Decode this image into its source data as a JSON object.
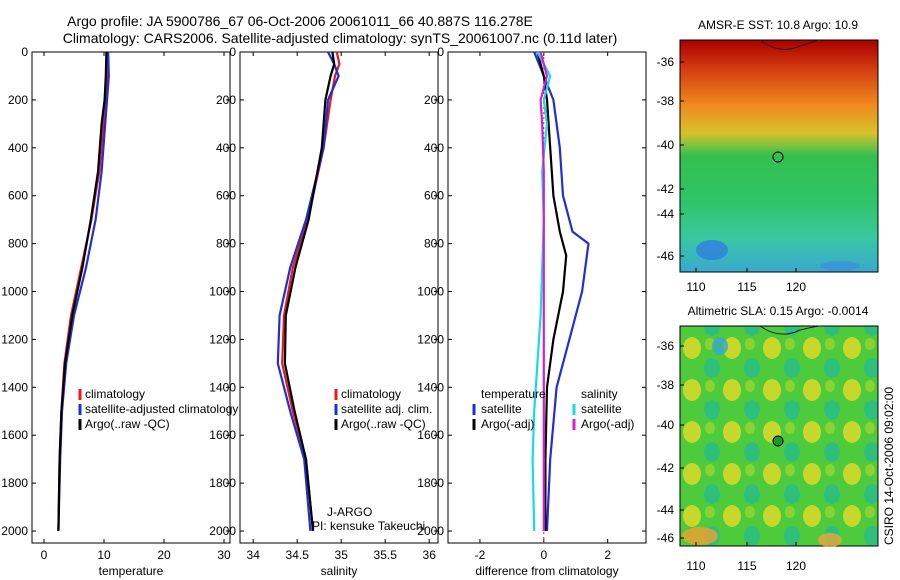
{
  "header": {
    "line1": "Argo profile: JA 5900786_67 06-Oct-2006 20061011_66 40.887S 116.278E",
    "line2": "Climatology: CARS2006. Satellite-adjusted climatology: synTS_20061007.nc (0.11d later)"
  },
  "colors": {
    "climatology": "#e41a1c",
    "satellite": "#1f2ed6",
    "argo": "#000000",
    "cyan": "#19d9e6",
    "magenta": "#d21fd2"
  },
  "chart_data": [
    {
      "type": "line",
      "id": "temperature",
      "xlabel": "temperature",
      "ylabel": "",
      "xlim": [
        -2,
        31
      ],
      "ylim": [
        2050,
        0
      ],
      "xticks": [
        0,
        10,
        20,
        30
      ],
      "yticks": [
        0,
        200,
        400,
        600,
        800,
        1000,
        1200,
        1400,
        1600,
        1800,
        2000
      ],
      "legend": [
        "climatology",
        "satellite-adjusted climatology",
        "Argo(..raw -QC)"
      ],
      "legend_position": "bottom-right",
      "series": [
        {
          "name": "climatology",
          "color_key": "climatology",
          "x": [
            10.6,
            10.5,
            10.3,
            9.9,
            9.2,
            7.9,
            6.2,
            4.5,
            3.4,
            2.9,
            2.6,
            2.4
          ],
          "y": [
            0,
            100,
            200,
            300,
            500,
            700,
            900,
            1100,
            1300,
            1500,
            1700,
            2000
          ]
        },
        {
          "name": "satellite-adjusted climatology",
          "color_key": "satellite",
          "x": [
            10.7,
            10.8,
            10.5,
            10.2,
            9.6,
            8.6,
            7.0,
            5.0,
            3.7,
            3.0,
            2.7,
            2.4
          ],
          "y": [
            0,
            100,
            200,
            300,
            500,
            700,
            900,
            1100,
            1300,
            1500,
            1700,
            2000
          ]
        },
        {
          "name": "Argo(..raw -QC)",
          "color_key": "argo",
          "x": [
            10.4,
            10.3,
            10.1,
            9.6,
            9.0,
            7.8,
            6.4,
            4.7,
            3.5,
            2.9,
            2.6,
            2.4
          ],
          "y": [
            0,
            100,
            200,
            300,
            500,
            700,
            900,
            1100,
            1300,
            1500,
            1700,
            2000
          ]
        }
      ]
    },
    {
      "type": "line",
      "id": "salinity",
      "xlabel": "salinity",
      "ylabel": "",
      "xlim": [
        33.85,
        36.1
      ],
      "ylim": [
        2050,
        0
      ],
      "xticks": [
        34,
        34.5,
        35,
        35.5,
        36
      ],
      "yticks": [
        0,
        200,
        400,
        600,
        800,
        1000,
        1200,
        1400,
        1600,
        1800,
        2000
      ],
      "legend": [
        "climatology",
        "satellite adj. clim.",
        "Argo(..raw -QC)"
      ],
      "legend_position": "bottom-right",
      "annotations": [
        "J-ARGO",
        "PI: kensuke Takeuchi"
      ],
      "series": [
        {
          "name": "climatology",
          "color_key": "climatology",
          "x": [
            34.95,
            34.98,
            34.93,
            34.88,
            34.8,
            34.62,
            34.45,
            34.35,
            34.33,
            34.45,
            34.6,
            34.68
          ],
          "y": [
            0,
            50,
            100,
            200,
            400,
            700,
            900,
            1100,
            1300,
            1500,
            1700,
            2000
          ]
        },
        {
          "name": "satellite adj. clim.",
          "color_key": "satellite",
          "x": [
            34.85,
            34.92,
            34.97,
            34.85,
            34.8,
            34.6,
            34.42,
            34.3,
            34.28,
            34.42,
            34.58,
            34.65
          ],
          "y": [
            0,
            50,
            100,
            200,
            400,
            700,
            900,
            1100,
            1300,
            1500,
            1700,
            2000
          ]
        },
        {
          "name": "Argo(..raw -QC)",
          "color_key": "argo",
          "x": [
            34.9,
            34.92,
            34.88,
            34.82,
            34.78,
            34.63,
            34.48,
            34.37,
            34.36,
            34.47,
            34.6,
            34.68
          ],
          "y": [
            0,
            50,
            100,
            200,
            400,
            700,
            900,
            1100,
            1300,
            1500,
            1700,
            2000
          ]
        }
      ]
    },
    {
      "type": "line",
      "id": "difference",
      "xlabel": "difference from climatology",
      "ylabel": "",
      "xlim": [
        -3,
        3.2
      ],
      "ylim": [
        2050,
        0
      ],
      "xticks": [
        -2,
        0,
        2
      ],
      "yticks": [
        0,
        200,
        400,
        600,
        800,
        1000,
        1200,
        1400,
        1600,
        1800,
        2000
      ],
      "legend": [
        "temperature",
        "satellite",
        "Argo(-adj)",
        "salinity",
        "satellite",
        "Argo(-adj)"
      ],
      "legend_position": "bottom",
      "series": [
        {
          "name": "temperature satellite",
          "color_key": "satellite",
          "x": [
            -0.3,
            0.0,
            0.3,
            0.5,
            0.6,
            0.9,
            1.4,
            1.2,
            0.8,
            0.4,
            0.2,
            0.1
          ],
          "y": [
            0,
            100,
            200,
            400,
            600,
            750,
            800,
            1000,
            1200,
            1400,
            1700,
            2000
          ]
        },
        {
          "name": "temperature Argo(-adj)",
          "color_key": "argo",
          "x": [
            -0.2,
            0.0,
            0.1,
            0.2,
            0.3,
            0.5,
            0.7,
            0.6,
            0.3,
            0.1,
            0.05,
            0.05
          ],
          "y": [
            0,
            100,
            200,
            400,
            600,
            750,
            850,
            1000,
            1200,
            1400,
            1700,
            2000
          ]
        },
        {
          "name": "salinity satellite",
          "color_key": "cyan",
          "x": [
            -0.2,
            0.2,
            0.0,
            0.1,
            -0.05,
            0.0,
            -0.05,
            -0.1,
            -0.2,
            -0.3,
            -0.35,
            -0.3
          ],
          "y": [
            0,
            100,
            200,
            300,
            500,
            700,
            900,
            1100,
            1300,
            1500,
            1700,
            2000
          ]
        },
        {
          "name": "salinity Argo(-adj)",
          "color_key": "magenta",
          "x": [
            -0.1,
            0.1,
            -0.1,
            -0.05,
            0.0,
            0.0,
            0.0,
            0.0,
            0.0,
            0.0,
            0.0,
            0.0
          ],
          "y": [
            0,
            100,
            200,
            300,
            500,
            700,
            900,
            1100,
            1300,
            1500,
            1700,
            2000
          ]
        }
      ]
    }
  ],
  "maps": [
    {
      "title": "AMSR-E SST: 10.8 Argo: 10.9",
      "xticks": [
        "110",
        "115",
        "120"
      ],
      "yticks": [
        "-36",
        "-38",
        "-40",
        "-42",
        "-44",
        "-46"
      ],
      "marker": "open-circle"
    },
    {
      "title": "Altimetric SLA: 0.15 Argo: -0.0014",
      "xticks": [
        "110",
        "115",
        "120"
      ],
      "yticks": [
        "-36",
        "-38",
        "-40",
        "-42",
        "-44",
        "-46"
      ],
      "marker": "filled-circle",
      "side_label": "CSIRO 14-Oct-2006 09:02:00"
    }
  ]
}
